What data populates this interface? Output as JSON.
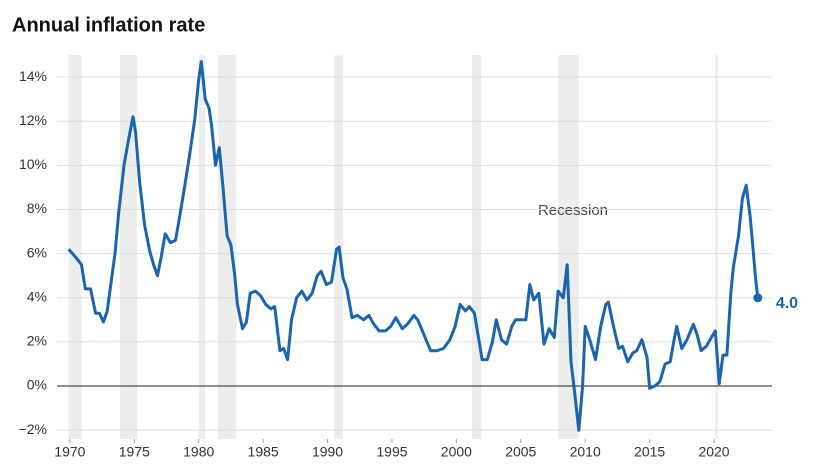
{
  "chart_data": {
    "type": "line",
    "title": "Annual inflation rate",
    "annotation": "Recession",
    "last_label": "4.0",
    "color": "#1a64b0",
    "recession_color": "#ededed",
    "grid": true,
    "xlim": [
      1969,
      2024.5
    ],
    "ylim": [
      -2.4,
      15
    ],
    "xticks": [
      1970,
      1975,
      1980,
      1985,
      1990,
      1995,
      2000,
      2005,
      2010,
      2015,
      2020
    ],
    "yticks": [
      {
        "value": -2,
        "label": "−2%"
      },
      {
        "value": 0,
        "label": "0%"
      },
      {
        "value": 2,
        "label": "2%"
      },
      {
        "value": 4,
        "label": "4%"
      },
      {
        "value": 6,
        "label": "6%"
      },
      {
        "value": 8,
        "label": "8%"
      },
      {
        "value": 10,
        "label": "10%"
      },
      {
        "value": 12,
        "label": "12%"
      },
      {
        "value": 14,
        "label": "14%"
      }
    ],
    "recessions": [
      [
        1969.9,
        1970.9
      ],
      [
        1973.9,
        1975.2
      ],
      [
        1980.0,
        1980.5
      ],
      [
        1981.5,
        1982.9
      ],
      [
        1990.5,
        1991.2
      ],
      [
        2001.2,
        2001.9
      ],
      [
        2007.9,
        2009.5
      ],
      [
        2020.1,
        2020.3
      ]
    ],
    "x": [
      1969.9,
      1970.2,
      1970.5,
      1970.9,
      1971.2,
      1971.6,
      1972.0,
      1972.3,
      1972.6,
      1972.9,
      1973.2,
      1973.5,
      1973.8,
      1974.2,
      1974.5,
      1974.9,
      1975.1,
      1975.4,
      1975.8,
      1976.2,
      1976.5,
      1976.8,
      1977.1,
      1977.4,
      1977.8,
      1978.2,
      1978.5,
      1978.9,
      1979.3,
      1979.7,
      1980.0,
      1980.2,
      1980.5,
      1980.8,
      1981.0,
      1981.3,
      1981.6,
      1981.9,
      1982.2,
      1982.5,
      1982.8,
      1983.0,
      1983.4,
      1983.7,
      1984.0,
      1984.4,
      1984.8,
      1985.2,
      1985.6,
      1985.9,
      1986.3,
      1986.6,
      1986.9,
      1987.2,
      1987.6,
      1988.0,
      1988.4,
      1988.8,
      1989.2,
      1989.5,
      1989.9,
      1990.3,
      1990.7,
      1990.9,
      1991.2,
      1991.5,
      1991.9,
      1992.3,
      1992.8,
      1993.2,
      1993.6,
      1994.0,
      1994.5,
      1994.9,
      1995.3,
      1995.8,
      1996.2,
      1996.7,
      1997.0,
      1997.5,
      1998.0,
      1998.5,
      1999.0,
      1999.5,
      1999.9,
      2000.3,
      2000.7,
      2001.0,
      2001.4,
      2001.8,
      2002.0,
      2002.4,
      2002.8,
      2003.1,
      2003.5,
      2003.9,
      2004.3,
      2004.6,
      2005.0,
      2005.4,
      2005.7,
      2006.0,
      2006.4,
      2006.8,
      2007.2,
      2007.6,
      2007.9,
      2008.3,
      2008.6,
      2008.9,
      2009.2,
      2009.5,
      2009.8,
      2010.0,
      2010.4,
      2010.8,
      2011.2,
      2011.6,
      2011.8,
      2012.2,
      2012.6,
      2012.9,
      2013.3,
      2013.7,
      2014.0,
      2014.4,
      2014.8,
      2015.0,
      2015.4,
      2015.8,
      2016.2,
      2016.6,
      2016.9,
      2017.1,
      2017.5,
      2017.9,
      2018.4,
      2018.7,
      2019.0,
      2019.4,
      2019.9,
      2020.1,
      2020.4,
      2020.7,
      2021.0,
      2021.3,
      2021.5,
      2021.9,
      2022.2,
      2022.5,
      2022.8,
      2023.0,
      2023.2,
      2023.4
    ],
    "values": [
      6.2,
      6.0,
      5.8,
      5.5,
      4.4,
      4.4,
      3.3,
      3.3,
      2.9,
      3.4,
      4.7,
      6.0,
      7.9,
      10.0,
      11.0,
      12.2,
      11.5,
      9.3,
      7.3,
      6.1,
      5.5,
      5.0,
      5.9,
      6.9,
      6.5,
      6.6,
      7.6,
      9.0,
      10.5,
      12.1,
      13.9,
      14.7,
      13.0,
      12.6,
      11.8,
      10.0,
      10.8,
      8.9,
      6.8,
      6.4,
      5.0,
      3.7,
      2.6,
      2.9,
      4.2,
      4.3,
      4.1,
      3.7,
      3.5,
      3.6,
      1.6,
      1.7,
      1.2,
      3.0,
      4.0,
      4.3,
      3.9,
      4.2,
      5.0,
      5.2,
      4.6,
      4.7,
      6.2,
      6.3,
      4.9,
      4.4,
      3.1,
      3.2,
      3.0,
      3.2,
      2.8,
      2.5,
      2.5,
      2.7,
      3.1,
      2.6,
      2.8,
      3.2,
      3.0,
      2.3,
      1.6,
      1.6,
      1.7,
      2.1,
      2.7,
      3.7,
      3.4,
      3.6,
      3.3,
      1.9,
      1.2,
      1.2,
      2.0,
      3.0,
      2.1,
      1.9,
      2.7,
      3.0,
      3.0,
      3.0,
      4.6,
      3.9,
      4.2,
      1.9,
      2.6,
      2.2,
      4.3,
      4.0,
      5.5,
      1.1,
      -0.4,
      -2.0,
      0.0,
      2.7,
      2.0,
      1.2,
      2.7,
      3.7,
      3.8,
      2.7,
      1.7,
      1.8,
      1.1,
      1.5,
      1.6,
      2.1,
      1.3,
      -0.1,
      0.0,
      0.2,
      1.0,
      1.1,
      2.1,
      2.7,
      1.7,
      2.1,
      2.8,
      2.3,
      1.6,
      1.8,
      2.3,
      2.5,
      0.1,
      1.4,
      1.4,
      4.2,
      5.4,
      6.8,
      8.5,
      9.1,
      7.7,
      6.4,
      5.0,
      4.0
    ]
  }
}
